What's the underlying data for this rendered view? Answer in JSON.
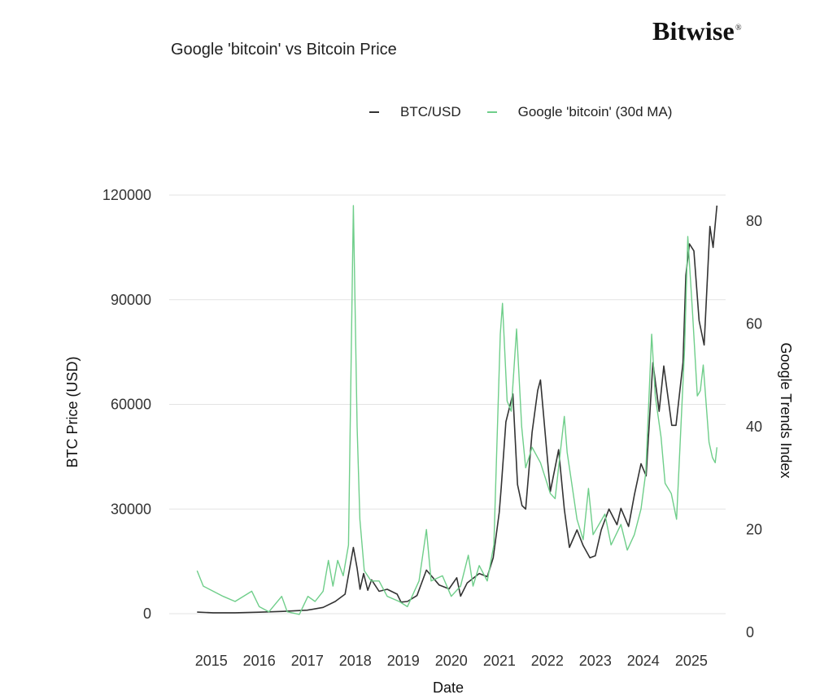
{
  "brand": {
    "name": "Bitwise",
    "mark": "®"
  },
  "title": "Google 'bitcoin' vs Bitcoin Price",
  "legend": [
    {
      "label": "BTC/USD",
      "color": "#333333"
    },
    {
      "label": "Google 'bitcoin' (30d MA)",
      "color": "#6fce8a"
    }
  ],
  "chart_data": {
    "type": "line",
    "title": "Google 'bitcoin' vs Bitcoin Price",
    "xlabel": "Date",
    "ylabel": "BTC Price (USD)",
    "y2label": "Google Trends Index",
    "x_ticks": [
      "2015",
      "2016",
      "2017",
      "2018",
      "2019",
      "2020",
      "2021",
      "2022",
      "2023",
      "2024",
      "2025"
    ],
    "ylim": [
      0,
      120000
    ],
    "y_ticks": [
      "0",
      "30000",
      "60000",
      "90000",
      "120000"
    ],
    "y2lim": [
      0,
      80
    ],
    "y2_ticks": [
      "0",
      "20",
      "40",
      "60",
      "80"
    ],
    "grid": true,
    "legend_position": "top-right",
    "series": [
      {
        "name": "BTC/USD",
        "axis": "left",
        "color": "#333333",
        "points": [
          [
            "2014-09-15",
            450
          ],
          [
            "2015-01-15",
            250
          ],
          [
            "2015-07-01",
            260
          ],
          [
            "2016-01-01",
            430
          ],
          [
            "2016-07-01",
            660
          ],
          [
            "2017-01-01",
            1000
          ],
          [
            "2017-05-01",
            1800
          ],
          [
            "2017-08-01",
            3500
          ],
          [
            "2017-10-15",
            5600
          ],
          [
            "2017-12-17",
            19000
          ],
          [
            "2018-01-15",
            13000
          ],
          [
            "2018-02-06",
            7000
          ],
          [
            "2018-03-05",
            11500
          ],
          [
            "2018-04-06",
            6700
          ],
          [
            "2018-05-05",
            9700
          ],
          [
            "2018-07-01",
            6400
          ],
          [
            "2018-09-01",
            7000
          ],
          [
            "2018-11-15",
            5600
          ],
          [
            "2018-12-15",
            3300
          ],
          [
            "2019-02-01",
            3500
          ],
          [
            "2019-04-15",
            5200
          ],
          [
            "2019-06-26",
            12500
          ],
          [
            "2019-08-15",
            10300
          ],
          [
            "2019-10-01",
            8200
          ],
          [
            "2019-12-15",
            7100
          ],
          [
            "2020-02-12",
            10300
          ],
          [
            "2020-03-12",
            5000
          ],
          [
            "2020-05-01",
            8800
          ],
          [
            "2020-08-01",
            11500
          ],
          [
            "2020-10-01",
            10600
          ],
          [
            "2020-11-15",
            16000
          ],
          [
            "2020-12-31",
            29000
          ],
          [
            "2021-01-15",
            36000
          ],
          [
            "2021-02-20",
            55000
          ],
          [
            "2021-04-14",
            63000
          ],
          [
            "2021-05-19",
            37000
          ],
          [
            "2021-06-22",
            31000
          ],
          [
            "2021-07-20",
            30000
          ],
          [
            "2021-09-07",
            52000
          ],
          [
            "2021-10-20",
            64000
          ],
          [
            "2021-11-10",
            67000
          ],
          [
            "2022-01-24",
            35000
          ],
          [
            "2022-03-28",
            47000
          ],
          [
            "2022-05-10",
            30000
          ],
          [
            "2022-06-18",
            19000
          ],
          [
            "2022-08-15",
            24000
          ],
          [
            "2022-10-01",
            19500
          ],
          [
            "2022-11-21",
            16000
          ],
          [
            "2023-01-01",
            16600
          ],
          [
            "2023-02-15",
            24000
          ],
          [
            "2023-04-15",
            30000
          ],
          [
            "2023-06-15",
            25500
          ],
          [
            "2023-07-15",
            30200
          ],
          [
            "2023-09-11",
            25000
          ],
          [
            "2023-10-25",
            34000
          ],
          [
            "2023-12-15",
            43000
          ],
          [
            "2024-01-23",
            39500
          ],
          [
            "2024-03-14",
            72000
          ],
          [
            "2024-05-01",
            58000
          ],
          [
            "2024-06-05",
            71000
          ],
          [
            "2024-08-05",
            54000
          ],
          [
            "2024-09-06",
            54000
          ],
          [
            "2024-10-29",
            72000
          ],
          [
            "2024-11-20",
            97000
          ],
          [
            "2024-12-17",
            106000
          ],
          [
            "2025-01-20",
            104000
          ],
          [
            "2025-03-01",
            84000
          ],
          [
            "2025-04-08",
            77000
          ],
          [
            "2025-05-22",
            111000
          ],
          [
            "2025-06-15",
            105000
          ],
          [
            "2025-07-14",
            117000
          ]
        ]
      },
      {
        "name": "Google 'bitcoin' (30d MA)",
        "axis": "right",
        "color": "#6fce8a",
        "points": [
          [
            "2014-09-15",
            12
          ],
          [
            "2014-11-01",
            9
          ],
          [
            "2015-01-15",
            8
          ],
          [
            "2015-04-01",
            7
          ],
          [
            "2015-07-01",
            6
          ],
          [
            "2015-11-05",
            8
          ],
          [
            "2016-01-01",
            5
          ],
          [
            "2016-03-15",
            4
          ],
          [
            "2016-06-20",
            7
          ],
          [
            "2016-08-01",
            4
          ],
          [
            "2016-11-01",
            3.5
          ],
          [
            "2017-01-05",
            7
          ],
          [
            "2017-03-01",
            6
          ],
          [
            "2017-05-01",
            8
          ],
          [
            "2017-06-10",
            14
          ],
          [
            "2017-07-15",
            9
          ],
          [
            "2017-08-20",
            14
          ],
          [
            "2017-10-01",
            11
          ],
          [
            "2017-11-10",
            17
          ],
          [
            "2017-12-17",
            83
          ],
          [
            "2018-01-15",
            40
          ],
          [
            "2018-02-05",
            22
          ],
          [
            "2018-03-10",
            12
          ],
          [
            "2018-05-01",
            10
          ],
          [
            "2018-07-01",
            10
          ],
          [
            "2018-09-01",
            7
          ],
          [
            "2018-12-01",
            6
          ],
          [
            "2019-02-01",
            5
          ],
          [
            "2019-05-01",
            10
          ],
          [
            "2019-06-26",
            20
          ],
          [
            "2019-08-01",
            10
          ],
          [
            "2019-10-26",
            11
          ],
          [
            "2020-01-01",
            7
          ],
          [
            "2020-03-12",
            9
          ],
          [
            "2020-05-10",
            15
          ],
          [
            "2020-06-15",
            9
          ],
          [
            "2020-08-01",
            13
          ],
          [
            "2020-10-01",
            10
          ],
          [
            "2020-11-20",
            17
          ],
          [
            "2021-01-08",
            58
          ],
          [
            "2021-01-25",
            64
          ],
          [
            "2021-03-01",
            45
          ],
          [
            "2021-04-01",
            43
          ],
          [
            "2021-05-12",
            59
          ],
          [
            "2021-06-20",
            40
          ],
          [
            "2021-07-20",
            32
          ],
          [
            "2021-09-07",
            36
          ],
          [
            "2021-11-10",
            33
          ],
          [
            "2022-01-24",
            27
          ],
          [
            "2022-03-01",
            26
          ],
          [
            "2022-05-10",
            42
          ],
          [
            "2022-06-01",
            35
          ],
          [
            "2022-06-30",
            30
          ],
          [
            "2022-08-15",
            22
          ],
          [
            "2022-10-01",
            18
          ],
          [
            "2022-11-10",
            28
          ],
          [
            "2022-12-15",
            19
          ],
          [
            "2023-03-15",
            23
          ],
          [
            "2023-05-01",
            17
          ],
          [
            "2023-07-15",
            21
          ],
          [
            "2023-09-01",
            16
          ],
          [
            "2023-10-25",
            19
          ],
          [
            "2023-12-15",
            24
          ],
          [
            "2024-01-20",
            31
          ],
          [
            "2024-03-05",
            58
          ],
          [
            "2024-04-01",
            46
          ],
          [
            "2024-05-15",
            38
          ],
          [
            "2024-06-15",
            29
          ],
          [
            "2024-08-01",
            27
          ],
          [
            "2024-09-10",
            22
          ],
          [
            "2024-11-10",
            55
          ],
          [
            "2024-12-05",
            77
          ],
          [
            "2025-01-10",
            62
          ],
          [
            "2025-02-15",
            46
          ],
          [
            "2025-03-10",
            47
          ],
          [
            "2025-04-01",
            52
          ],
          [
            "2025-05-15",
            37
          ],
          [
            "2025-06-10",
            34
          ],
          [
            "2025-07-01",
            33
          ],
          [
            "2025-07-14",
            36
          ]
        ]
      }
    ]
  }
}
